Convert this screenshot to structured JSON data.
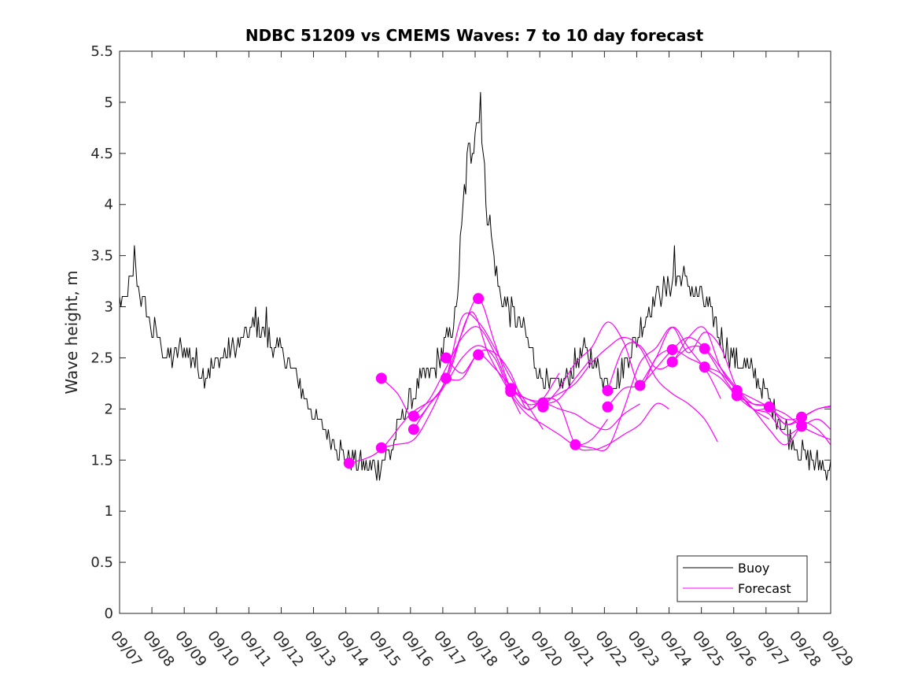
{
  "chart_data": {
    "type": "line",
    "title": "NDBC 51209 vs CMEMS Waves: 7 to 10 day forecast",
    "xlabel": "",
    "ylabel": "Wave height, m",
    "xlim": [
      0,
      22
    ],
    "ylim": [
      0,
      5.5
    ],
    "x_unit": "days since 09/07",
    "yticks": [
      "0",
      "0.5",
      "1",
      "1.5",
      "2",
      "2.5",
      "3",
      "3.5",
      "4",
      "4.5",
      "5",
      "5.5"
    ],
    "xticks": [
      "09/07",
      "09/08",
      "09/09",
      "09/10",
      "09/11",
      "09/12",
      "09/13",
      "09/14",
      "09/15",
      "09/16",
      "09/17",
      "09/18",
      "09/19",
      "09/20",
      "09/21",
      "09/22",
      "09/23",
      "09/24",
      "09/25",
      "09/26",
      "09/27",
      "09/28",
      "09/29"
    ],
    "legend": {
      "position": "bottom-right",
      "entries": [
        "Buoy",
        "Forecast"
      ]
    },
    "colors": {
      "buoy": "#000000",
      "forecast": "#ff00ff"
    },
    "buoy_series": {
      "name": "Buoy",
      "keypoints": [
        [
          0.0,
          3.1
        ],
        [
          0.15,
          3.0
        ],
        [
          0.3,
          3.2
        ],
        [
          0.45,
          3.3
        ],
        [
          0.5,
          3.35
        ],
        [
          0.6,
          3.2
        ],
        [
          0.75,
          3.0
        ],
        [
          0.9,
          2.9
        ],
        [
          1.0,
          2.8
        ],
        [
          1.2,
          2.7
        ],
        [
          1.4,
          2.55
        ],
        [
          1.6,
          2.5
        ],
        [
          1.8,
          2.55
        ],
        [
          2.0,
          2.6
        ],
        [
          2.2,
          2.5
        ],
        [
          2.4,
          2.45
        ],
        [
          2.6,
          2.35
        ],
        [
          2.8,
          2.4
        ],
        [
          3.0,
          2.45
        ],
        [
          3.2,
          2.5
        ],
        [
          3.4,
          2.55
        ],
        [
          3.6,
          2.6
        ],
        [
          3.8,
          2.7
        ],
        [
          4.0,
          2.75
        ],
        [
          4.2,
          2.8
        ],
        [
          4.5,
          2.75
        ],
        [
          4.8,
          2.6
        ],
        [
          5.0,
          2.55
        ],
        [
          5.2,
          2.45
        ],
        [
          5.5,
          2.3
        ],
        [
          5.8,
          2.1
        ],
        [
          6.0,
          1.95
        ],
        [
          6.2,
          1.85
        ],
        [
          6.4,
          1.75
        ],
        [
          6.6,
          1.7
        ],
        [
          6.8,
          1.62
        ],
        [
          7.0,
          1.55
        ],
        [
          7.2,
          1.5
        ],
        [
          7.4,
          1.48
        ],
        [
          7.6,
          1.45
        ],
        [
          7.8,
          1.42
        ],
        [
          8.0,
          1.45
        ],
        [
          8.2,
          1.5
        ],
        [
          8.4,
          1.58
        ],
        [
          8.6,
          1.8
        ],
        [
          8.8,
          2.0
        ],
        [
          9.0,
          2.1
        ],
        [
          9.2,
          2.2
        ],
        [
          9.4,
          2.3
        ],
        [
          9.6,
          2.35
        ],
        [
          9.8,
          2.45
        ],
        [
          10.0,
          2.55
        ],
        [
          10.2,
          2.7
        ],
        [
          10.4,
          2.9
        ],
        [
          10.6,
          3.8
        ],
        [
          10.75,
          4.4
        ],
        [
          10.9,
          4.6
        ],
        [
          11.0,
          4.8
        ],
        [
          11.1,
          4.85
        ],
        [
          11.2,
          4.7
        ],
        [
          11.3,
          4.2
        ],
        [
          11.4,
          3.9
        ],
        [
          11.5,
          3.7
        ],
        [
          11.6,
          3.4
        ],
        [
          11.8,
          3.1
        ],
        [
          12.0,
          3.0
        ],
        [
          12.2,
          2.9
        ],
        [
          12.4,
          2.8
        ],
        [
          12.6,
          2.7
        ],
        [
          12.8,
          2.5
        ],
        [
          13.0,
          2.35
        ],
        [
          13.2,
          2.25
        ],
        [
          13.4,
          2.2
        ],
        [
          13.6,
          2.25
        ],
        [
          13.8,
          2.3
        ],
        [
          14.0,
          2.4
        ],
        [
          14.2,
          2.5
        ],
        [
          14.4,
          2.55
        ],
        [
          14.6,
          2.5
        ],
        [
          14.8,
          2.4
        ],
        [
          15.0,
          2.3
        ],
        [
          15.2,
          2.25
        ],
        [
          15.4,
          2.3
        ],
        [
          15.6,
          2.4
        ],
        [
          15.8,
          2.55
        ],
        [
          16.0,
          2.7
        ],
        [
          16.2,
          2.85
        ],
        [
          16.4,
          3.0
        ],
        [
          16.6,
          3.1
        ],
        [
          16.8,
          3.15
        ],
        [
          17.0,
          3.2
        ],
        [
          17.2,
          3.25
        ],
        [
          17.4,
          3.3
        ],
        [
          17.6,
          3.2
        ],
        [
          17.8,
          3.15
        ],
        [
          18.0,
          3.1
        ],
        [
          18.2,
          3.0
        ],
        [
          18.4,
          2.85
        ],
        [
          18.6,
          2.7
        ],
        [
          18.8,
          2.6
        ],
        [
          19.0,
          2.5
        ],
        [
          19.2,
          2.45
        ],
        [
          19.4,
          2.4
        ],
        [
          19.6,
          2.35
        ],
        [
          19.8,
          2.25
        ],
        [
          20.0,
          2.15
        ],
        [
          20.2,
          2.0
        ],
        [
          20.4,
          1.9
        ],
        [
          20.6,
          1.8
        ],
        [
          20.8,
          1.7
        ],
        [
          21.0,
          1.62
        ],
        [
          21.2,
          1.55
        ],
        [
          21.4,
          1.5
        ],
        [
          21.6,
          1.45
        ],
        [
          21.8,
          1.42
        ],
        [
          22.0,
          1.45
        ]
      ],
      "peaks": [
        [
          0.45,
          3.6
        ],
        [
          4.2,
          3.0
        ],
        [
          4.55,
          3.0
        ],
        [
          7.95,
          1.3
        ],
        [
          11.15,
          5.1
        ],
        [
          17.15,
          3.6
        ]
      ]
    },
    "forecast_series": [
      {
        "name": "Forecast",
        "x": [
          7.1,
          8.0,
          9.0,
          10.0,
          10.7,
          11.0,
          11.4,
          12.0,
          12.4
        ],
        "y": [
          1.47,
          1.58,
          1.95,
          2.2,
          2.85,
          2.92,
          2.55,
          2.2,
          1.95
        ]
      },
      {
        "name": "Forecast",
        "x": [
          8.1,
          8.6,
          9.1,
          9.6,
          10.1,
          10.6,
          11.1,
          11.6,
          12.1,
          12.6,
          13.1
        ],
        "y": [
          2.3,
          2.15,
          1.9,
          2.05,
          2.3,
          2.9,
          2.85,
          2.6,
          2.3,
          2.05,
          1.8
        ]
      },
      {
        "name": "Forecast",
        "x": [
          8.1,
          8.5,
          9.1,
          9.6,
          10.1,
          10.6,
          11.1,
          11.6,
          12.1,
          12.6,
          13.1,
          13.6
        ],
        "y": [
          1.62,
          1.65,
          1.7,
          1.95,
          2.3,
          2.75,
          3.08,
          2.65,
          2.2,
          2.0,
          2.1,
          2.35
        ]
      },
      {
        "name": "Forecast",
        "x": [
          9.1,
          9.6,
          10.1,
          10.6,
          11.1,
          11.6,
          12.1,
          12.6,
          13.1,
          13.6,
          14.1,
          14.6
        ],
        "y": [
          1.93,
          2.1,
          2.4,
          2.7,
          2.8,
          2.55,
          2.2,
          2.1,
          2.05,
          2.1,
          2.3,
          2.5
        ]
      },
      {
        "name": "Forecast",
        "x": [
          9.1,
          9.6,
          10.1,
          10.6,
          11.1,
          11.6,
          12.1,
          12.6,
          13.1,
          13.6,
          14.1,
          14.6,
          15.1
        ],
        "y": [
          1.8,
          2.05,
          2.25,
          2.5,
          2.62,
          2.5,
          2.15,
          1.95,
          1.85,
          1.75,
          1.65,
          1.7,
          1.9
        ]
      },
      {
        "name": "Forecast",
        "x": [
          10.1,
          10.6,
          11.1,
          11.6,
          12.1,
          12.6,
          13.1,
          13.6,
          14.1,
          14.6,
          15.1,
          15.6,
          16.1
        ],
        "y": [
          2.5,
          2.35,
          2.53,
          2.4,
          2.22,
          2.05,
          2.06,
          2.0,
          1.95,
          1.85,
          1.8,
          1.95,
          2.05
        ]
      },
      {
        "name": "Forecast",
        "x": [
          10.1,
          10.6,
          11.1,
          11.6,
          12.1,
          12.6,
          13.1,
          13.6,
          14.1,
          14.6,
          15.1,
          15.6,
          16.1,
          16.6,
          17.0
        ],
        "y": [
          2.3,
          2.3,
          2.55,
          2.55,
          2.35,
          2.0,
          2.1,
          2.05,
          1.65,
          1.6,
          1.65,
          1.75,
          1.85,
          2.05,
          2.0
        ]
      },
      {
        "name": "Forecast",
        "x": [
          12.1,
          12.6,
          13.1,
          13.6,
          14.1,
          14.6,
          15.1,
          15.6,
          16.1,
          16.6,
          17.1,
          17.6,
          18.1,
          18.5
        ],
        "y": [
          2.2,
          2.1,
          2.08,
          2.15,
          2.25,
          2.45,
          2.6,
          2.7,
          2.6,
          2.3,
          2.15,
          2.05,
          1.9,
          1.68
        ]
      },
      {
        "name": "Forecast",
        "x": [
          13.1,
          13.6,
          14.1,
          14.6,
          15.1,
          15.6,
          16.1,
          16.6,
          17.1,
          17.6,
          18.1,
          18.6
        ],
        "y": [
          2.02,
          2.2,
          2.45,
          2.6,
          2.85,
          2.65,
          2.23,
          2.5,
          2.58,
          2.5,
          2.4,
          2.1
        ]
      },
      {
        "name": "Forecast",
        "x": [
          14.1,
          14.6,
          15.1,
          15.6,
          16.1,
          16.6,
          17.1,
          17.6,
          18.1,
          18.6,
          19.1,
          19.6,
          20.1
        ],
        "y": [
          1.65,
          1.62,
          1.62,
          2.0,
          2.45,
          2.6,
          2.8,
          2.55,
          2.75,
          2.6,
          2.2,
          2.0,
          1.9
        ]
      },
      {
        "name": "Forecast",
        "x": [
          15.1,
          15.6,
          16.1,
          16.6,
          17.1,
          17.6,
          18.1,
          18.6,
          19.1,
          19.6,
          20.1,
          20.6,
          21.1
        ],
        "y": [
          2.18,
          2.6,
          2.62,
          2.4,
          2.46,
          2.7,
          2.79,
          2.4,
          2.18,
          2.0,
          1.8,
          1.65,
          1.85
        ]
      },
      {
        "name": "Forecast",
        "x": [
          15.1,
          15.6,
          16.1,
          16.6,
          17.1,
          17.6,
          18.1,
          18.6,
          19.1,
          19.6,
          20.1,
          20.6,
          21.1,
          21.6,
          22.0
        ],
        "y": [
          2.02,
          2.2,
          2.23,
          2.4,
          2.58,
          2.7,
          2.59,
          2.35,
          2.13,
          2.0,
          1.95,
          1.75,
          1.83,
          1.9,
          1.8
        ]
      },
      {
        "name": "Forecast",
        "x": [
          16.1,
          16.6,
          17.1,
          17.6,
          18.1,
          18.6,
          19.1,
          19.6,
          20.1,
          20.6,
          21.1,
          21.6,
          22.0
        ],
        "y": [
          2.23,
          2.5,
          2.8,
          2.6,
          2.41,
          2.3,
          2.13,
          2.05,
          2.02,
          1.85,
          1.92,
          2.0,
          2.02
        ]
      },
      {
        "name": "Forecast",
        "x": [
          17.1,
          17.6,
          18.1,
          18.6,
          19.1,
          19.6,
          20.1,
          20.6,
          21.1,
          21.6,
          22.0
        ],
        "y": [
          2.46,
          2.6,
          2.59,
          2.4,
          2.2,
          2.05,
          2.02,
          1.85,
          1.88,
          1.8,
          1.65
        ]
      },
      {
        "name": "Forecast",
        "x": [
          18.1,
          18.6,
          19.1,
          19.6,
          20.1,
          20.6,
          21.1,
          21.6,
          22.0
        ],
        "y": [
          2.41,
          2.35,
          2.18,
          2.0,
          2.0,
          1.9,
          1.92,
          2.0,
          2.03
        ]
      },
      {
        "name": "Forecast",
        "x": [
          19.1,
          19.6,
          20.1,
          20.6,
          21.1,
          21.6,
          22.0
        ],
        "y": [
          2.18,
          2.1,
          2.02,
          1.95,
          1.83,
          1.75,
          1.7
        ]
      }
    ],
    "forecast_markers": [
      [
        7.1,
        1.47
      ],
      [
        8.1,
        2.3
      ],
      [
        8.1,
        1.62
      ],
      [
        9.1,
        1.93
      ],
      [
        9.1,
        1.8
      ],
      [
        10.1,
        2.5
      ],
      [
        10.1,
        2.3
      ],
      [
        11.1,
        3.08
      ],
      [
        11.1,
        2.53
      ],
      [
        12.1,
        2.2
      ],
      [
        12.1,
        2.17
      ],
      [
        13.1,
        2.06
      ],
      [
        13.1,
        2.02
      ],
      [
        14.1,
        1.65
      ],
      [
        15.1,
        2.18
      ],
      [
        15.1,
        2.02
      ],
      [
        16.1,
        2.23
      ],
      [
        17.1,
        2.58
      ],
      [
        17.1,
        2.46
      ],
      [
        18.1,
        2.59
      ],
      [
        18.1,
        2.41
      ],
      [
        19.1,
        2.18
      ],
      [
        19.1,
        2.13
      ],
      [
        20.1,
        2.02
      ],
      [
        21.1,
        1.92
      ],
      [
        21.1,
        1.83
      ]
    ]
  }
}
